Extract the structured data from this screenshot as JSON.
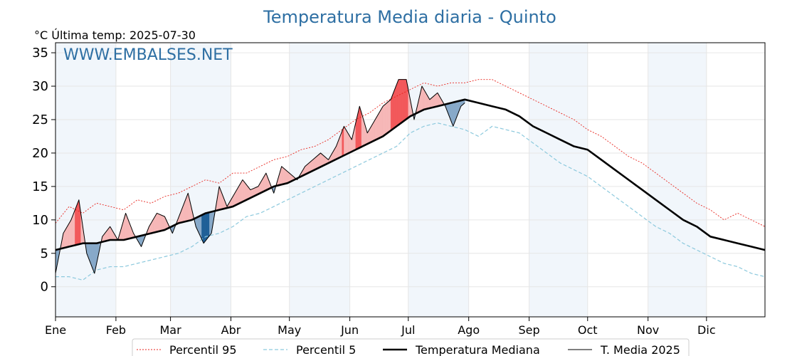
{
  "chart_data": {
    "type": "line",
    "title": "Temperatura Media diaria - Quinto",
    "subtitle": "°C   Última temp: 2025-07-30",
    "watermark": "WWW.EMBALSES.NET",
    "ylim": [
      -4.5,
      36.5
    ],
    "y_ticks": [
      0,
      5,
      10,
      15,
      20,
      25,
      30,
      35
    ],
    "xlim": [
      1,
      365
    ],
    "months": [
      {
        "label": "Ene",
        "day": 1
      },
      {
        "label": "Feb",
        "day": 32
      },
      {
        "label": "Mar",
        "day": 60
      },
      {
        "label": "Abr",
        "day": 91
      },
      {
        "label": "May",
        "day": 121
      },
      {
        "label": "Jun",
        "day": 152
      },
      {
        "label": "Jul",
        "day": 182
      },
      {
        "label": "Ago",
        "day": 213
      },
      {
        "label": "Sep",
        "day": 244
      },
      {
        "label": "Oct",
        "day": 274
      },
      {
        "label": "Nov",
        "day": 305
      },
      {
        "label": "Dic",
        "day": 335
      }
    ],
    "grid": true,
    "legend_position": "bottom",
    "series": [
      {
        "name": "Percentil 95",
        "color": "#e8261f",
        "style": "dotted",
        "x": [
          1,
          8,
          15,
          22,
          29,
          36,
          43,
          50,
          57,
          64,
          71,
          78,
          85,
          92,
          99,
          106,
          113,
          120,
          127,
          134,
          141,
          148,
          155,
          162,
          169,
          176,
          183,
          190,
          197,
          204,
          211,
          218,
          225,
          232,
          239,
          246,
          253,
          260,
          267,
          274,
          281,
          288,
          295,
          302,
          309,
          316,
          323,
          330,
          337,
          344,
          351,
          358,
          365
        ],
        "values": [
          9.5,
          12,
          11,
          12.5,
          12,
          11.5,
          13,
          12.5,
          13.5,
          14,
          15,
          16,
          15.5,
          17,
          17,
          18,
          19,
          19.5,
          20.5,
          21,
          22,
          23.5,
          25,
          26,
          27.5,
          28.5,
          29.5,
          30.5,
          30,
          30.5,
          30.5,
          31,
          31,
          30,
          29,
          28,
          27,
          26,
          25,
          23.5,
          22.5,
          21,
          19.5,
          18.5,
          17,
          15.5,
          14,
          12.5,
          11.5,
          10,
          11,
          10,
          9
        ]
      },
      {
        "name": "Percentil 5",
        "color": "#8cc9dd",
        "style": "dashed",
        "x": [
          1,
          8,
          15,
          22,
          29,
          36,
          43,
          50,
          57,
          64,
          71,
          78,
          85,
          92,
          99,
          106,
          113,
          120,
          127,
          134,
          141,
          148,
          155,
          162,
          169,
          176,
          183,
          190,
          197,
          204,
          211,
          218,
          225,
          232,
          239,
          246,
          253,
          260,
          267,
          274,
          281,
          288,
          295,
          302,
          309,
          316,
          323,
          330,
          337,
          344,
          351,
          358,
          365
        ],
        "values": [
          1.5,
          1.5,
          1,
          2.5,
          3,
          3,
          3.5,
          4,
          4.5,
          5,
          6,
          7.5,
          8,
          9,
          10.5,
          11,
          12,
          13,
          14,
          15,
          16,
          17,
          18,
          19,
          20,
          21,
          23,
          24,
          24.5,
          24,
          23.5,
          22.5,
          24,
          23.5,
          23,
          21.5,
          20,
          18.5,
          17.5,
          16.5,
          15,
          13.5,
          12,
          10.5,
          9,
          8,
          6.5,
          5.5,
          4.5,
          3.5,
          3,
          2,
          1.5
        ]
      },
      {
        "name": "Temperatura Mediana",
        "color": "#000000",
        "style": "bold",
        "x": [
          1,
          8,
          15,
          22,
          29,
          36,
          43,
          50,
          57,
          64,
          71,
          78,
          85,
          92,
          99,
          106,
          113,
          120,
          127,
          134,
          141,
          148,
          155,
          162,
          169,
          176,
          183,
          190,
          197,
          204,
          211,
          218,
          225,
          232,
          239,
          246,
          253,
          260,
          267,
          274,
          281,
          288,
          295,
          302,
          309,
          316,
          323,
          330,
          337,
          344,
          351,
          358,
          365
        ],
        "values": [
          5.5,
          6,
          6.5,
          6.5,
          7,
          7,
          7.5,
          8,
          8.5,
          9.5,
          10,
          11,
          11.5,
          12,
          13,
          14,
          15,
          15.5,
          16.5,
          17.5,
          18.5,
          19.5,
          20.5,
          21.5,
          22.5,
          24,
          25.5,
          26.5,
          27,
          27.5,
          28,
          27.5,
          27,
          26.5,
          25.5,
          24,
          23,
          22,
          21,
          20.5,
          19,
          17.5,
          16,
          14.5,
          13,
          11.5,
          10,
          9,
          7.5,
          7,
          6.5,
          6,
          5.5
        ]
      },
      {
        "name": "T. Media 2025",
        "color": "#000000",
        "style": "thin",
        "x": [
          1,
          5,
          9,
          13,
          17,
          21,
          25,
          29,
          33,
          37,
          41,
          45,
          49,
          53,
          57,
          61,
          65,
          69,
          73,
          77,
          81,
          85,
          89,
          93,
          97,
          101,
          105,
          109,
          113,
          117,
          121,
          125,
          129,
          133,
          137,
          141,
          145,
          149,
          153,
          157,
          161,
          165,
          169,
          173,
          177,
          181,
          185,
          189,
          193,
          197,
          201,
          205,
          209,
          211
        ],
        "values": [
          2,
          8,
          10,
          13,
          5,
          2,
          7.5,
          9,
          7,
          11,
          8,
          6,
          9,
          11,
          10.5,
          8,
          11,
          14,
          9,
          6.5,
          8,
          15,
          12,
          14,
          16,
          14.5,
          15,
          17,
          14,
          18,
          17,
          16,
          18,
          19,
          20,
          19,
          21,
          24,
          22,
          27,
          23,
          25,
          27,
          28,
          31,
          31,
          25,
          30,
          28,
          29,
          27,
          24,
          27,
          27.5
        ]
      }
    ]
  }
}
